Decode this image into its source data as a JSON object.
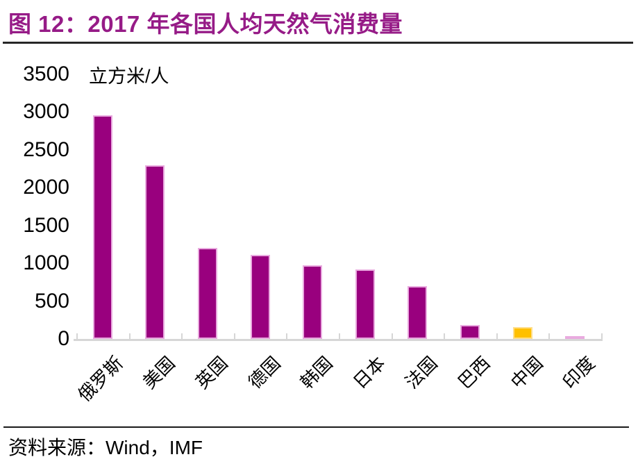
{
  "title": "图 12：2017 年各国人均天然气消费量",
  "source": "资料来源：Wind，IMF",
  "colors": {
    "title": "#961B87",
    "top_rule": "#262626",
    "bottom_rule": "#1A1A1A",
    "axis": "#D6D6D6",
    "text": "#000000"
  },
  "chart_data": {
    "type": "bar",
    "title": "2017 年各国人均天然气消费量",
    "unit_label": "立方米/人",
    "xlabel": "",
    "ylabel": "立方米/人",
    "categories": [
      "俄罗斯",
      "美国",
      "英国",
      "德国",
      "韩国",
      "日本",
      "法国",
      "巴西",
      "中国",
      "印度"
    ],
    "values": [
      2960,
      2300,
      1200,
      1110,
      970,
      920,
      700,
      185,
      160,
      40
    ],
    "ylim": [
      0,
      3500
    ],
    "yticks": [
      0,
      500,
      1000,
      1500,
      2000,
      2500,
      3000,
      3500
    ],
    "grid": false,
    "legend": "none",
    "bar_color": "#99007E",
    "bar_edge_color": "#E9AADF",
    "highlight_index": 8,
    "highlight_color": "#FFC000",
    "highlight_edge_color": "#FFDE8A"
  }
}
